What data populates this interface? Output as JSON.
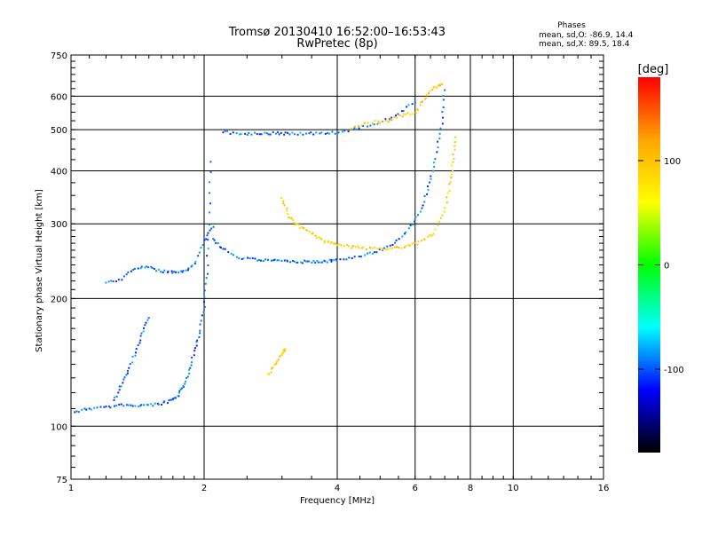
{
  "chart_data": {
    "type": "scatter",
    "title": "Tromsø 20130410 16:52:00–16:53:43",
    "subtitle": "RwPretec (8p)",
    "xlabel": "Frequency [MHz]",
    "ylabel": "Stationary phase Virtual Height [km]",
    "xscale": "log",
    "yscale": "log",
    "xlim": [
      1,
      16
    ],
    "ylim": [
      75,
      750
    ],
    "x_ticks": [
      1,
      2,
      4,
      6,
      8,
      10,
      16
    ],
    "y_ticks": [
      75,
      100,
      200,
      300,
      400,
      500,
      600,
      750
    ],
    "x_grid": [
      2,
      4,
      6,
      8,
      10
    ],
    "y_grid": [
      100,
      200,
      300,
      400,
      500,
      600
    ],
    "grid": true,
    "phase_box": {
      "title": "Phases",
      "line_o": "mean, sd,O: -86.9, 14.4",
      "line_x": "mean, sd,X: 89.5, 18.4"
    },
    "colorbar": {
      "label": "[deg]",
      "range": [
        -180,
        180
      ],
      "ticks": [
        100,
        0,
        -100
      ],
      "stops": [
        "#ff0000",
        "#ffa500",
        "#ffff00",
        "#00ff00",
        "#00ffff",
        "#0000ff",
        "#000000"
      ]
    },
    "series": [
      {
        "mode": "O",
        "color_deg": -95,
        "traces": [
          {
            "x": [
              1.02,
              1.1,
              1.2,
              1.3,
              1.4,
              1.5,
              1.6,
              1.7,
              1.75,
              1.8,
              1.85,
              1.9,
              1.95,
              2.0,
              2.03,
              2.05,
              2.07
            ],
            "y": [
              108,
              110,
              111,
              112,
              112,
              112,
              113,
              115,
              118,
              125,
              135,
              150,
              165,
              190,
              230,
              300,
              420
            ]
          },
          {
            "x": [
              1.25,
              1.3,
              1.35,
              1.4,
              1.45,
              1.5
            ],
            "y": [
              115,
              125,
              135,
              150,
              165,
              180
            ]
          },
          {
            "x": [
              1.2,
              1.3,
              1.4,
              1.5,
              1.6,
              1.7,
              1.8,
              1.9,
              2.0,
              2.1
            ],
            "y": [
              218,
              222,
              236,
              238,
              232,
              230,
              232,
              240,
              275,
              295
            ]
          },
          {
            "x": [
              2.1,
              2.2,
              2.4,
              2.6,
              2.8,
              3.0,
              3.2,
              3.4,
              3.6,
              3.8,
              4.0,
              4.4,
              4.8,
              5.2,
              5.6,
              6.0,
              6.3,
              6.5,
              6.7,
              6.9,
              7.0
            ],
            "y": [
              275,
              262,
              250,
              247,
              246,
              245,
              244,
              244,
              244,
              245,
              246,
              250,
              256,
              264,
              280,
              305,
              340,
              380,
              440,
              520,
              620
            ]
          },
          {
            "x": [
              2.2,
              2.4,
              2.6,
              2.8,
              3.0,
              3.2,
              3.5,
              3.8,
              4.1,
              4.5,
              5.0,
              5.5,
              6.0
            ],
            "y": [
              495,
              488,
              490,
              490,
              490,
              490,
              490,
              490,
              495,
              505,
              520,
              545,
              580
            ]
          }
        ]
      },
      {
        "mode": "X",
        "color_deg": 95,
        "traces": [
          {
            "x": [
              3.0,
              3.1,
              3.2,
              3.4,
              3.6,
              3.8,
              4.0,
              4.3,
              4.6,
              5.0,
              5.4,
              5.8,
              6.2,
              6.6,
              7.0,
              7.2,
              7.3,
              7.4
            ],
            "y": [
              345,
              315,
              300,
              290,
              280,
              272,
              268,
              265,
              263,
              262,
              263,
              266,
              272,
              285,
              320,
              370,
              420,
              480
            ]
          },
          {
            "x": [
              2.8,
              2.9,
              3.0,
              3.05
            ],
            "y": [
              132,
              140,
              148,
              152
            ]
          },
          {
            "x": [
              4.3,
              4.8,
              5.2,
              5.6,
              6.0,
              6.3,
              6.6,
              6.9
            ],
            "y": [
              505,
              520,
              525,
              540,
              550,
              590,
              625,
              640
            ]
          }
        ]
      }
    ]
  }
}
